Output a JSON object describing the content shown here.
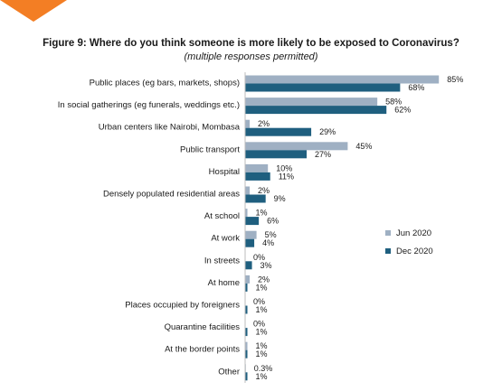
{
  "chart_data": {
    "type": "bar",
    "orientation": "horizontal",
    "title": "Figure 9: Where do you think someone is more likely to be exposed to Coronavirus?",
    "subtitle": "(multiple responses permitted)",
    "categories": [
      "Public places (eg bars, markets, shops)",
      "In social gatherings (eg funerals, weddings etc.)",
      "Urban centers like Nairobi, Mombasa",
      "Public transport",
      "Hospital",
      "Densely populated residential areas",
      "At school",
      "At work",
      "In streets",
      "At home",
      "Places occupied by foreigners",
      "Quarantine facilities",
      "At the border points",
      "Other"
    ],
    "series": [
      {
        "name": "Jun 2020",
        "color": "#9fb0c3",
        "values": [
          85,
          58,
          2,
          45,
          10,
          2,
          1,
          5,
          0,
          2,
          0,
          0,
          1,
          0.3
        ],
        "labels": [
          "85%",
          "58%",
          "2%",
          "45%",
          "10%",
          "2%",
          "1%",
          "5%",
          "0%",
          "2%",
          "0%",
          "0%",
          "1%",
          "0.3%"
        ]
      },
      {
        "name": "Dec 2020",
        "color": "#1f5f7f",
        "values": [
          68,
          62,
          29,
          27,
          11,
          9,
          6,
          4,
          3,
          1,
          1,
          1,
          1,
          1
        ],
        "labels": [
          "68%",
          "62%",
          "29%",
          "27%",
          "11%",
          "9%",
          "6%",
          "4%",
          "3%",
          "1%",
          "1%",
          "1%",
          "1%",
          "1%"
        ]
      }
    ],
    "xlim": [
      0,
      100
    ],
    "legend_position": "right",
    "grid": false
  },
  "decor": {
    "corner_color": "#f37e24"
  }
}
